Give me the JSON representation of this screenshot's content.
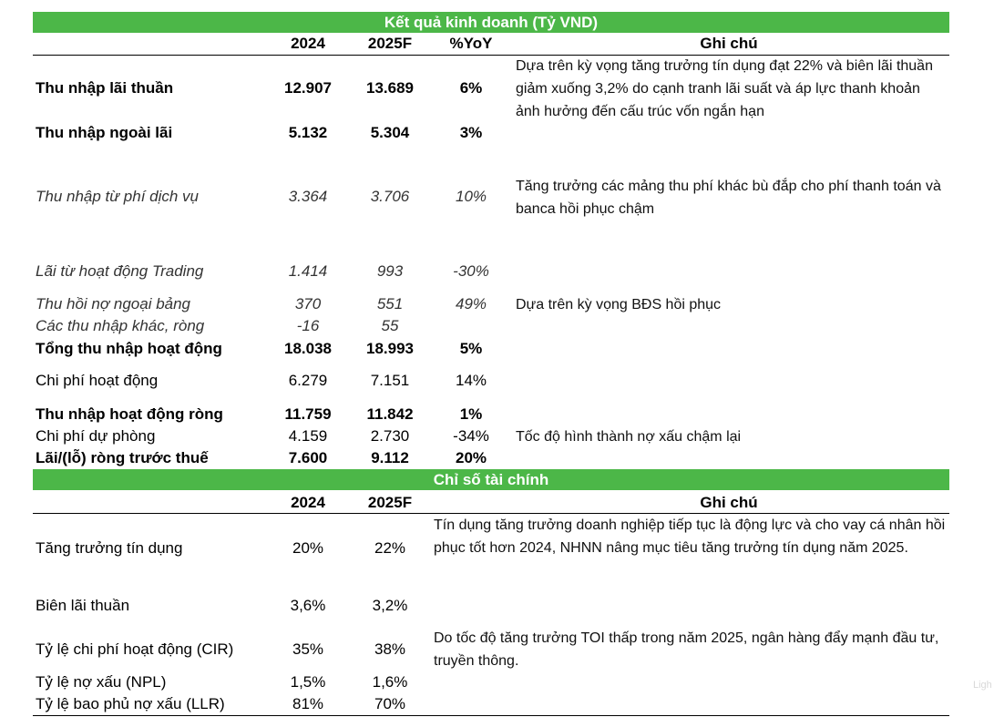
{
  "section1": {
    "title": "Kết quả kinh doanh (Tỷ VND)",
    "headers": {
      "y1": "2024",
      "y2": "2025F",
      "yoy": "%YoY",
      "note": "Ghi chú"
    },
    "rows": [
      {
        "label": "Thu nhập lãi thuần",
        "y1": "12.907",
        "y2": "13.689",
        "yoy": "6%",
        "note": "Dựa trên kỳ vọng tăng trưởng tín dụng đạt 22% và biên lãi thuần giảm xuống 3,2% do cạnh tranh lãi suất và áp lực thanh khoản ảnh hưởng đến cấu trúc vốn ngắn hạn"
      },
      {
        "label": "Thu nhập ngoài lãi",
        "y1": "5.132",
        "y2": "5.304",
        "yoy": "3%",
        "note": ""
      },
      {
        "label": "Thu nhập từ phí dịch vụ",
        "y1": "3.364",
        "y2": "3.706",
        "yoy": "10%",
        "note": "Tăng trưởng các mảng thu phí khác bù đắp cho phí thanh toán và banca hồi phục chậm"
      },
      {
        "label": "Lãi từ hoạt động Trading",
        "y1": "1.414",
        "y2": "993",
        "yoy": "-30%",
        "note": ""
      },
      {
        "label": "Thu hồi nợ ngoại bảng",
        "y1": "370",
        "y2": "551",
        "yoy": "49%",
        "note": "Dựa trên kỳ vọng BĐS hồi phục"
      },
      {
        "label": "Các thu nhập khác, ròng",
        "y1": "-16",
        "y2": "55",
        "yoy": "",
        "note": ""
      },
      {
        "label": "Tổng thu nhập hoạt động",
        "y1": "18.038",
        "y2": "18.993",
        "yoy": "5%",
        "note": ""
      },
      {
        "label": "Chi phí hoạt động",
        "y1": "6.279",
        "y2": "7.151",
        "yoy": "14%",
        "note": ""
      },
      {
        "label": "Thu nhập hoạt động ròng",
        "y1": "11.759",
        "y2": "11.842",
        "yoy": "1%",
        "note": ""
      },
      {
        "label": "Chi phí dự phòng",
        "y1": "4.159",
        "y2": "2.730",
        "yoy": "-34%",
        "note": "Tốc độ hình thành nợ xấu chậm lại"
      },
      {
        "label": "Lãi/(lỗ) ròng trước thuế",
        "y1": "7.600",
        "y2": "9.112",
        "yoy": "20%",
        "note": ""
      }
    ]
  },
  "section2": {
    "title": "Chỉ số tài chính",
    "headers": {
      "y1": "2024",
      "y2": "2025F",
      "note": "Ghi chú"
    },
    "rows": [
      {
        "label": "Tăng trưởng tín dụng",
        "y1": "20%",
        "y2": "22%",
        "note": "Tín dụng tăng trưởng doanh nghiệp tiếp tục là động lực và cho vay cá nhân hồi phục tốt hơn 2024, NHNN nâng mục tiêu tăng trưởng tín dụng năm 2025."
      },
      {
        "label": "Biên lãi thuần",
        "y1": "3,6%",
        "y2": "3,2%",
        "note": ""
      },
      {
        "label": "Tỷ lệ chi phí hoạt động (CIR)",
        "y1": "35%",
        "y2": "38%",
        "note": "Do tốc độ tăng trưởng TOI thấp trong năm 2025, ngân hàng đẩy mạnh đầu tư, truyền thông."
      },
      {
        "label": "Tỷ lệ nợ xấu (NPL)",
        "y1": "1,5%",
        "y2": "1,6%",
        "note": ""
      },
      {
        "label": "Tỷ lệ bao phủ nợ xấu (LLR)",
        "y1": "81%",
        "y2": "70%",
        "note": ""
      }
    ]
  },
  "watermark": "Ligh"
}
